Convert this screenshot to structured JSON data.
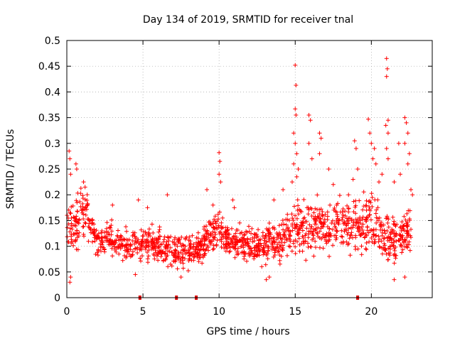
{
  "chart_data": {
    "type": "scatter",
    "title": "Day 134 of 2019, SRMTID for receiver tnal",
    "xlabel": "GPS time / hours",
    "ylabel": "SRMTID / TECUs",
    "xlim": [
      0,
      24
    ],
    "ylim": [
      0,
      0.5
    ],
    "x_ticks": [
      0,
      5,
      10,
      15,
      20
    ],
    "y_ticks": [
      0,
      0.05,
      0.1,
      0.15,
      0.2,
      0.25,
      0.3,
      0.35,
      0.4,
      0.45,
      0.5
    ],
    "grid": true,
    "marker": "plus",
    "color": "#ff0000",
    "gap_markers_x": [
      4.8,
      7.2,
      8.5,
      19.1
    ],
    "envelope": {
      "x": [
        0.0,
        0.3,
        0.6,
        1.0,
        1.3,
        1.6,
        2.0,
        3.0,
        4.0,
        5.0,
        6.0,
        7.0,
        8.0,
        8.8,
        9.5,
        10.0,
        11.0,
        12.0,
        13.0,
        14.0,
        14.8,
        15.2,
        16.0,
        17.0,
        18.0,
        18.8,
        19.5,
        20.0,
        20.5,
        21.0,
        21.5,
        22.0,
        22.6
      ],
      "center": [
        0.13,
        0.14,
        0.14,
        0.15,
        0.17,
        0.13,
        0.11,
        0.11,
        0.1,
        0.11,
        0.1,
        0.09,
        0.09,
        0.1,
        0.12,
        0.13,
        0.11,
        0.1,
        0.1,
        0.11,
        0.13,
        0.13,
        0.14,
        0.13,
        0.14,
        0.15,
        0.14,
        0.14,
        0.12,
        0.12,
        0.11,
        0.12,
        0.13
      ],
      "spread": [
        0.06,
        0.08,
        0.06,
        0.06,
        0.05,
        0.04,
        0.035,
        0.035,
        0.035,
        0.04,
        0.035,
        0.035,
        0.035,
        0.04,
        0.035,
        0.04,
        0.035,
        0.035,
        0.04,
        0.045,
        0.06,
        0.06,
        0.06,
        0.05,
        0.055,
        0.06,
        0.07,
        0.065,
        0.06,
        0.06,
        0.05,
        0.05,
        0.05
      ]
    },
    "spikes": [
      {
        "x": 0.15,
        "y": 0.285
      },
      {
        "x": 0.2,
        "y": 0.27
      },
      {
        "x": 0.25,
        "y": 0.24
      },
      {
        "x": 0.6,
        "y": 0.26
      },
      {
        "x": 0.65,
        "y": 0.25
      },
      {
        "x": 1.1,
        "y": 0.225
      },
      {
        "x": 1.2,
        "y": 0.215
      },
      {
        "x": 3.0,
        "y": 0.18
      },
      {
        "x": 4.7,
        "y": 0.19
      },
      {
        "x": 5.3,
        "y": 0.175
      },
      {
        "x": 6.6,
        "y": 0.2
      },
      {
        "x": 9.2,
        "y": 0.21
      },
      {
        "x": 9.6,
        "y": 0.18
      },
      {
        "x": 10.0,
        "y": 0.282
      },
      {
        "x": 10.05,
        "y": 0.265
      },
      {
        "x": 10.0,
        "y": 0.24
      },
      {
        "x": 10.1,
        "y": 0.225
      },
      {
        "x": 10.9,
        "y": 0.19
      },
      {
        "x": 11.0,
        "y": 0.175
      },
      {
        "x": 13.6,
        "y": 0.19
      },
      {
        "x": 14.2,
        "y": 0.21
      },
      {
        "x": 14.8,
        "y": 0.225
      },
      {
        "x": 14.9,
        "y": 0.26
      },
      {
        "x": 15.0,
        "y": 0.452
      },
      {
        "x": 15.05,
        "y": 0.413
      },
      {
        "x": 15.0,
        "y": 0.367
      },
      {
        "x": 15.05,
        "y": 0.355
      },
      {
        "x": 14.9,
        "y": 0.32
      },
      {
        "x": 15.0,
        "y": 0.3
      },
      {
        "x": 15.1,
        "y": 0.28
      },
      {
        "x": 15.2,
        "y": 0.25
      },
      {
        "x": 15.1,
        "y": 0.235
      },
      {
        "x": 15.9,
        "y": 0.355
      },
      {
        "x": 16.0,
        "y": 0.345
      },
      {
        "x": 15.9,
        "y": 0.3
      },
      {
        "x": 16.1,
        "y": 0.27
      },
      {
        "x": 16.6,
        "y": 0.32
      },
      {
        "x": 16.7,
        "y": 0.31
      },
      {
        "x": 16.6,
        "y": 0.28
      },
      {
        "x": 17.2,
        "y": 0.25
      },
      {
        "x": 17.5,
        "y": 0.22
      },
      {
        "x": 18.5,
        "y": 0.2
      },
      {
        "x": 18.8,
        "y": 0.23
      },
      {
        "x": 18.9,
        "y": 0.305
      },
      {
        "x": 19.0,
        "y": 0.29
      },
      {
        "x": 19.1,
        "y": 0.25
      },
      {
        "x": 19.8,
        "y": 0.347
      },
      {
        "x": 19.9,
        "y": 0.32
      },
      {
        "x": 20.0,
        "y": 0.3
      },
      {
        "x": 20.2,
        "y": 0.29
      },
      {
        "x": 20.1,
        "y": 0.27
      },
      {
        "x": 20.3,
        "y": 0.26
      },
      {
        "x": 20.5,
        "y": 0.225
      },
      {
        "x": 20.7,
        "y": 0.24
      },
      {
        "x": 21.0,
        "y": 0.465
      },
      {
        "x": 21.05,
        "y": 0.445
      },
      {
        "x": 21.0,
        "y": 0.43
      },
      {
        "x": 21.1,
        "y": 0.345
      },
      {
        "x": 20.95,
        "y": 0.335
      },
      {
        "x": 21.1,
        "y": 0.32
      },
      {
        "x": 21.0,
        "y": 0.29
      },
      {
        "x": 21.1,
        "y": 0.27
      },
      {
        "x": 21.5,
        "y": 0.225
      },
      {
        "x": 21.8,
        "y": 0.3
      },
      {
        "x": 21.9,
        "y": 0.24
      },
      {
        "x": 22.2,
        "y": 0.35
      },
      {
        "x": 22.3,
        "y": 0.34
      },
      {
        "x": 22.4,
        "y": 0.32
      },
      {
        "x": 22.2,
        "y": 0.3
      },
      {
        "x": 22.5,
        "y": 0.28
      },
      {
        "x": 22.4,
        "y": 0.26
      },
      {
        "x": 22.6,
        "y": 0.21
      },
      {
        "x": 22.7,
        "y": 0.2
      },
      {
        "x": 0.2,
        "y": 0.03
      },
      {
        "x": 0.25,
        "y": 0.04
      },
      {
        "x": 4.5,
        "y": 0.045
      },
      {
        "x": 7.5,
        "y": 0.04
      },
      {
        "x": 13.1,
        "y": 0.035
      },
      {
        "x": 13.3,
        "y": 0.04
      },
      {
        "x": 21.5,
        "y": 0.035
      },
      {
        "x": 22.2,
        "y": 0.04
      }
    ]
  }
}
